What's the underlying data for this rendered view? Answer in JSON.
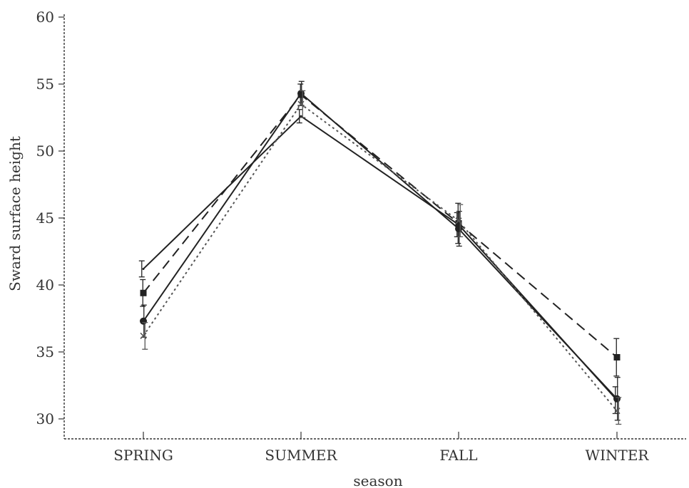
{
  "chart_data": {
    "type": "line",
    "categories": [
      "SPRING",
      "SUMMER",
      "FALL",
      "WINTER"
    ],
    "xlabel": "season",
    "ylabel": "Sward surface height",
    "ylim": [
      30,
      60
    ],
    "yticks": [
      30,
      35,
      40,
      45,
      50,
      55,
      60
    ],
    "grid": false,
    "legend": "none",
    "series": [
      {
        "values": [
          41.2,
          52.6,
          44.5,
          31.4
        ],
        "errors": [
          0.6,
          0.5,
          0.9,
          1.0
        ],
        "marker": "none",
        "dash": "none",
        "color": "#222222"
      },
      {
        "values": [
          39.4,
          54.2,
          44.6,
          34.6
        ],
        "errors": [
          1.0,
          0.8,
          1.5,
          1.4
        ],
        "marker": "square",
        "dash": "dashed",
        "color": "#222222"
      },
      {
        "values": [
          37.3,
          54.3,
          44.2,
          31.5
        ],
        "errors": [
          1.2,
          0.9,
          1.3,
          1.6
        ],
        "marker": "circle",
        "dash": "none",
        "color": "#222222"
      },
      {
        "values": [
          36.2,
          53.5,
          44.8,
          30.6
        ],
        "errors": [
          1.0,
          1.0,
          1.2,
          1.0
        ],
        "marker": "x",
        "dash": "dotted",
        "color": "#555555"
      }
    ]
  }
}
